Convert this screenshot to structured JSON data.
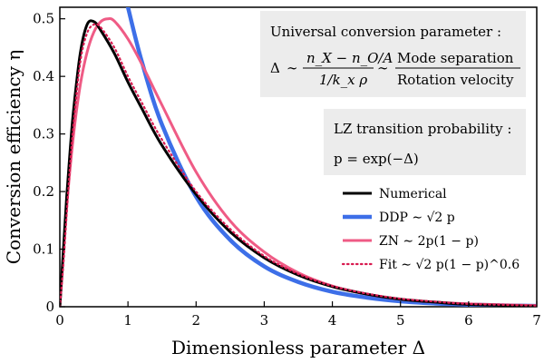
{
  "chart_data": {
    "type": "line",
    "xlabel": "Dimensionless parameter Δ",
    "ylabel": "Conversion efficiency η",
    "xlim": [
      0,
      7
    ],
    "ylim": [
      0,
      0.52
    ],
    "xticks": [
      "0",
      "1",
      "2",
      "3",
      "4",
      "5",
      "6",
      "7"
    ],
    "yticks": [
      "0",
      "0.1",
      "0.2",
      "0.3",
      "0.4",
      "0.5"
    ],
    "grid": false,
    "legend_position": "lower-right",
    "series": [
      {
        "name": "Numerical",
        "color": "#000000",
        "style": "solid",
        "x": [
          0,
          0.05,
          0.1,
          0.15,
          0.2,
          0.3,
          0.4,
          0.5,
          0.6,
          0.8,
          1.0,
          1.2,
          1.5,
          2.0,
          2.5,
          3.0,
          3.5,
          4.0,
          4.5,
          5.0,
          5.5,
          6.0,
          7.0
        ],
        "y": [
          0,
          0.095,
          0.19,
          0.27,
          0.34,
          0.44,
          0.49,
          0.495,
          0.48,
          0.44,
          0.39,
          0.345,
          0.28,
          0.195,
          0.13,
          0.085,
          0.055,
          0.035,
          0.022,
          0.013,
          0.008,
          0.004,
          0.001
        ]
      },
      {
        "name": "DDP ∼ √2 p",
        "color": "#3d6fe8",
        "style": "solid",
        "x": [
          0.94,
          1.0,
          1.2,
          1.5,
          2.0,
          2.5,
          3.0,
          3.5,
          4.0,
          4.5,
          5.0,
          5.5,
          6.0,
          7.0
        ],
        "y": [
          0.55,
          0.52,
          0.427,
          0.316,
          0.191,
          0.116,
          0.07,
          0.043,
          0.026,
          0.016,
          0.0095,
          0.0058,
          0.0035,
          0.0013
        ]
      },
      {
        "name": "ZN ∼ 2p(1 − p)",
        "color": "#ef5b85",
        "style": "solid",
        "x": [
          0,
          0.1,
          0.2,
          0.3,
          0.4,
          0.5,
          0.6,
          0.7,
          0.8,
          1.0,
          1.2,
          1.5,
          2.0,
          2.5,
          3.0,
          3.5,
          4.0,
          4.5,
          5.0,
          5.5,
          6.0,
          7.0
        ],
        "y": [
          0,
          0.172,
          0.297,
          0.385,
          0.442,
          0.477,
          0.495,
          0.5,
          0.496,
          0.465,
          0.422,
          0.35,
          0.234,
          0.149,
          0.095,
          0.059,
          0.036,
          0.022,
          0.013,
          0.008,
          0.005,
          0.002
        ]
      },
      {
        "name": "Fit ∼ √2 p(1 − p)^0.6",
        "color": "#d81b50",
        "style": "dotted",
        "x": [
          0,
          0.05,
          0.1,
          0.15,
          0.2,
          0.3,
          0.4,
          0.5,
          0.6,
          0.8,
          1.0,
          1.2,
          1.5,
          2.0,
          2.5,
          3.0,
          3.5,
          4.0,
          4.5,
          5.0,
          5.5,
          6.0,
          7.0
        ],
        "y": [
          0,
          0.07,
          0.16,
          0.245,
          0.315,
          0.425,
          0.475,
          0.49,
          0.485,
          0.45,
          0.4,
          0.355,
          0.29,
          0.2,
          0.135,
          0.088,
          0.057,
          0.036,
          0.023,
          0.014,
          0.009,
          0.005,
          0.002
        ]
      }
    ],
    "annotations": {
      "box1": {
        "title": "Universal conversion parameter :",
        "delta_symbol": "Δ",
        "sim": "∼",
        "numerator": "n_X − n_O/A",
        "denominator": "1/k_x ρ",
        "ratio_numerator": "Mode separation",
        "ratio_denominator": "Rotation velocity"
      },
      "box2": {
        "title": "LZ transition probability :",
        "formula": "p = exp(−Δ)"
      }
    }
  }
}
